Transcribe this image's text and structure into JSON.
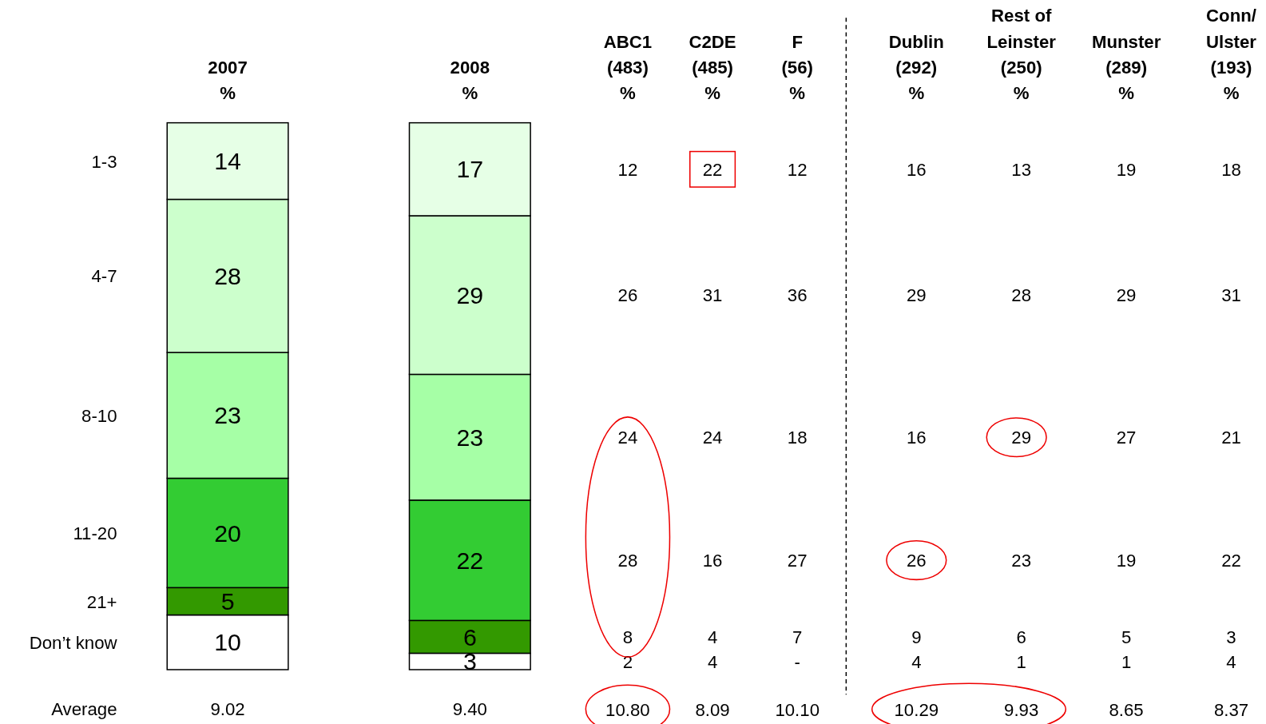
{
  "chart_data": [
    {
      "type": "bar",
      "stacked": true,
      "data_labels": true,
      "categories": [
        "2007\n%",
        "2008\n%"
      ],
      "series": [
        {
          "name": "Don’t know",
          "color": "#ffffff",
          "values": [
            10,
            3
          ]
        },
        {
          "name": "21+",
          "color": "#339900",
          "values": [
            5,
            6
          ]
        },
        {
          "name": "11-20",
          "color": "#33cc33",
          "values": [
            20,
            22
          ]
        },
        {
          "name": "8-10",
          "color": "#a6ffa6",
          "values": [
            23,
            23
          ]
        },
        {
          "name": "4-7",
          "color": "#ccffcc",
          "values": [
            28,
            29
          ]
        },
        {
          "name": "1-3",
          "color": "#e6ffe6",
          "values": [
            14,
            17
          ]
        }
      ],
      "annotations": [
        "Average",
        "9.02",
        "9.40"
      ]
    },
    {
      "type": "other",
      "categories": [
        "ABC1\n(483)\n%",
        "C2DE\n(485)\n%",
        "F\n(56)\n%",
        "Dublin\n(292)\n%",
        "Rest of\nLeinster\n(250)\n%",
        "Munster\n(289)\n%",
        "Conn/\nUlster\n(193)\n%"
      ],
      "annotations": [
        "12",
        "22",
        "12",
        "16",
        "13",
        "19",
        "18",
        "26",
        "31",
        "36",
        "29",
        "28",
        "29",
        "31",
        "24",
        "24",
        "18",
        "16",
        "29",
        "27",
        "21",
        "28",
        "16",
        "27",
        "26",
        "23",
        "19",
        "22",
        "8",
        "4",
        "7",
        "9",
        "6",
        "5",
        "3",
        "2",
        "4",
        "-",
        "4",
        "1",
        "1",
        "4",
        "10.80",
        "8.09",
        "10.10",
        "10.29",
        "9.93",
        "8.65",
        "8.37"
      ]
    }
  ]
}
